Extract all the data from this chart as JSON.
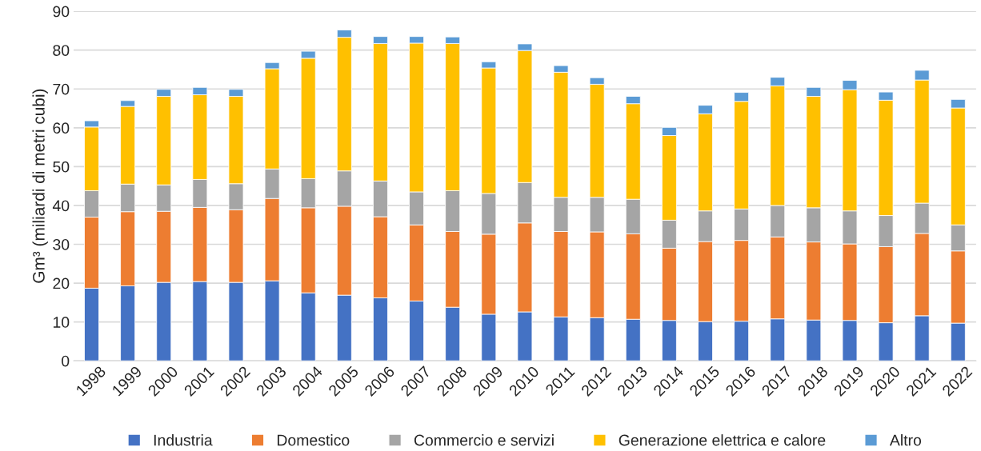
{
  "chart_data": {
    "type": "bar",
    "stacked": true,
    "ylabel": "Gm³ (miliardi di metri cubi)",
    "categories": [
      "1998",
      "1999",
      "2000",
      "2001",
      "2002",
      "2003",
      "2004",
      "2005",
      "2006",
      "2007",
      "2008",
      "2009",
      "2010",
      "2011",
      "2012",
      "2013",
      "2014",
      "2015",
      "2016",
      "2017",
      "2018",
      "2019",
      "2020",
      "2021",
      "2022"
    ],
    "series": [
      {
        "name": "Industria",
        "color": "#4472c4",
        "values": [
          18.7,
          19.3,
          20.2,
          20.4,
          20.2,
          20.6,
          17.5,
          16.9,
          16.2,
          15.4,
          13.8,
          12.0,
          12.6,
          11.3,
          11.1,
          10.7,
          10.4,
          10.1,
          10.2,
          10.8,
          10.5,
          10.4,
          9.8,
          11.6,
          9.7
        ]
      },
      {
        "name": "Domestico",
        "color": "#ed7d31",
        "values": [
          18.3,
          19.1,
          18.3,
          19.1,
          18.7,
          21.2,
          21.9,
          22.9,
          20.9,
          19.6,
          19.5,
          20.6,
          22.9,
          22.0,
          22.1,
          22.0,
          18.6,
          20.6,
          20.8,
          21.1,
          20.1,
          19.7,
          19.6,
          21.2,
          18.6
        ]
      },
      {
        "name": "Commercio e servizi",
        "color": "#a5a5a5",
        "values": [
          6.8,
          7.1,
          6.8,
          7.2,
          6.7,
          7.6,
          7.5,
          9.1,
          9.2,
          8.5,
          10.5,
          10.5,
          10.4,
          8.8,
          8.9,
          8.9,
          7.2,
          7.9,
          8.1,
          8.1,
          8.8,
          8.5,
          8.0,
          7.8,
          6.7
        ]
      },
      {
        "name": "Generazione elettrica e calore",
        "color": "#ffc000",
        "values": [
          16.4,
          20.0,
          22.8,
          21.8,
          22.5,
          25.8,
          31.0,
          34.4,
          35.4,
          38.3,
          37.9,
          32.3,
          34.0,
          32.2,
          29.1,
          24.6,
          21.8,
          25.0,
          27.7,
          30.8,
          28.7,
          31.2,
          29.7,
          31.7,
          30.1
        ]
      },
      {
        "name": "Altro",
        "color": "#5b9bd5",
        "values": [
          1.6,
          1.5,
          1.8,
          1.9,
          1.8,
          1.6,
          1.8,
          1.9,
          1.8,
          1.7,
          1.7,
          1.6,
          1.7,
          1.7,
          1.7,
          1.9,
          2.1,
          2.2,
          2.3,
          2.2,
          2.3,
          2.4,
          2.1,
          2.5,
          2.2
        ]
      }
    ],
    "ylim": [
      0,
      90
    ],
    "yticks": [
      0,
      10,
      20,
      30,
      40,
      50,
      60,
      70,
      80,
      90
    ],
    "grid": "y",
    "legend": "bottom"
  }
}
